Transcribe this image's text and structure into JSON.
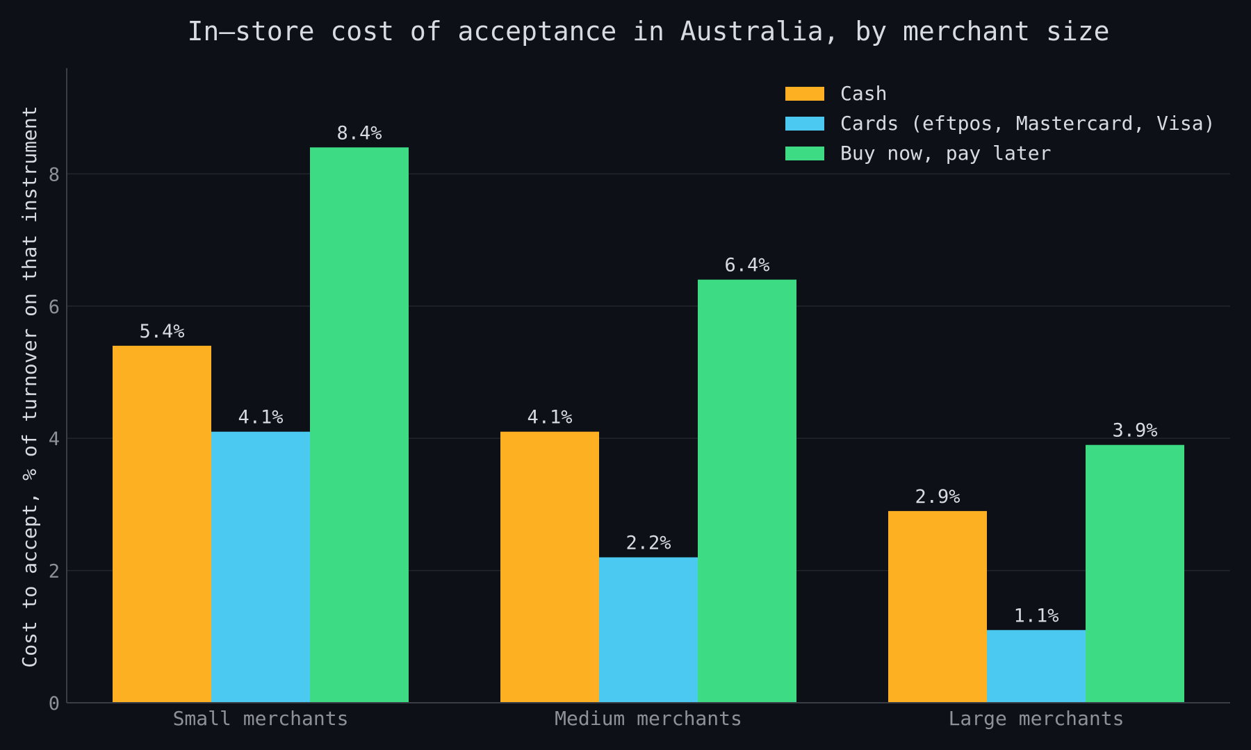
{
  "chart_data": {
    "type": "bar",
    "title": "In–store cost of acceptance in Australia, by merchant size",
    "xlabel": "",
    "ylabel": "Cost to accept, % of turnover on that instrument",
    "ylim": [
      0,
      9.6
    ],
    "yticks": [
      0,
      2,
      4,
      6,
      8
    ],
    "grid": true,
    "legend_position": "top-right",
    "categories": [
      "Small merchants",
      "Medium merchants",
      "Large merchants"
    ],
    "series": [
      {
        "name": "Cash",
        "color": "#fdb022",
        "values": [
          5.4,
          4.1,
          2.9
        ],
        "labels": [
          "5.4%",
          "4.1%",
          "2.9%"
        ]
      },
      {
        "name": "Cards (eftpos, Mastercard, Visa)",
        "color": "#4cc9f0",
        "values": [
          4.1,
          2.2,
          1.1
        ],
        "labels": [
          "4.1%",
          "2.2%",
          "1.1%"
        ]
      },
      {
        "name": "Buy now, pay later",
        "color": "#3ddc84",
        "values": [
          8.4,
          6.4,
          3.9
        ],
        "labels": [
          "8.4%",
          "6.4%",
          "3.9%"
        ]
      }
    ]
  }
}
